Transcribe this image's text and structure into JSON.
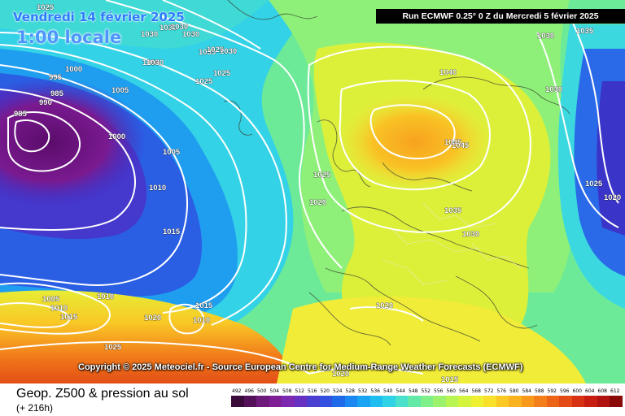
{
  "map": {
    "date_title": "Vendredi 14 février 2025",
    "local_time": "1:00 locale",
    "run_info": "Run ECMWF 0.25° 0 Z du Mercredi 5 février 2025",
    "copyright": "Copyright © 2025 Meteociel.fr - Source European Centre for Medium-Range Weather Forecasts (ECMWF)",
    "legend_title": "Geop. Z500 & pression au sol",
    "legend_subtitle": "(+ 216h)",
    "scale_values": [
      "492",
      "496",
      "500",
      "504",
      "508",
      "512",
      "516",
      "520",
      "524",
      "528",
      "532",
      "536",
      "540",
      "544",
      "548",
      "552",
      "556",
      "560",
      "564",
      "568",
      "572",
      "576",
      "580",
      "584",
      "588",
      "592",
      "596",
      "600",
      "604",
      "608",
      "612"
    ],
    "scale_colors": [
      "#3a0a3a",
      "#55105a",
      "#6e1a7a",
      "#7e1f95",
      "#7d28b0",
      "#6630c0",
      "#4a3fd0",
      "#3450e0",
      "#1f6ae8",
      "#1a88f0",
      "#19a4f3",
      "#20bef0",
      "#30d3e6",
      "#4be0cc",
      "#62e9a8",
      "#7ef08a",
      "#9cf26c",
      "#b8f452",
      "#d4f43e",
      "#eef032",
      "#f9e02a",
      "#fbc924",
      "#fbb21f",
      "#f9991c",
      "#f47f1a",
      "#ec6418",
      "#e34a16",
      "#d83214",
      "#c81e12",
      "#b0120f",
      "#8a0a0a"
    ],
    "pressure_labels": [
      "1025",
      "1030",
      "1030",
      "1030",
      "1030",
      "1035",
      "1030",
      "1025",
      "1025",
      "1025",
      "1030",
      "1030",
      "1000",
      "995",
      "985",
      "990",
      "985",
      "1005",
      "1000",
      "1005",
      "1010",
      "1015",
      "1040",
      "1045",
      "1045",
      "1025",
      "1020",
      "1035",
      "1030",
      "1030",
      "1030",
      "1035",
      "1025",
      "1020",
      "1005",
      "1010",
      "1015",
      "1010",
      "1020",
      "1015",
      "1010",
      "1025",
      "1020",
      "1020",
      "1015"
    ],
    "colors": {
      "contour": "#ffffff",
      "coast": "#3a3f33",
      "run_box": "#000000"
    }
  }
}
